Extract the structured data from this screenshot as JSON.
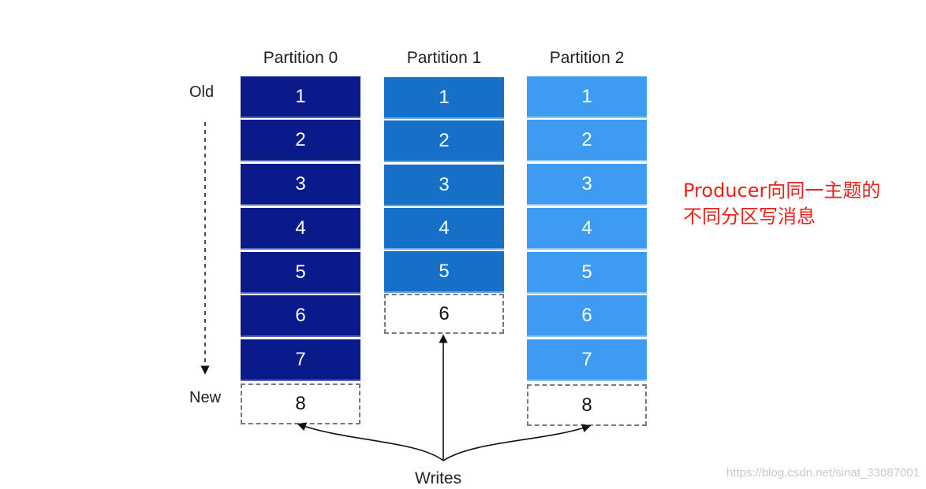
{
  "labels": {
    "old": "Old",
    "new": "New",
    "writes": "Writes"
  },
  "partitions": [
    {
      "title": "Partition 0",
      "cells": [
        "1",
        "2",
        "3",
        "4",
        "5",
        "6",
        "7"
      ],
      "pending": "8"
    },
    {
      "title": "Partition 1",
      "cells": [
        "1",
        "2",
        "3",
        "4",
        "5"
      ],
      "pending": "6"
    },
    {
      "title": "Partition 2",
      "cells": [
        "1",
        "2",
        "3",
        "4",
        "5",
        "6",
        "7"
      ],
      "pending": "8"
    }
  ],
  "note": {
    "line1": "Producer向同一主题的",
    "line2": "不同分区写消息"
  },
  "watermark": "https://blog.csdn.net/sinat_33087001",
  "colors": {
    "partition0": "#0b1a8a",
    "partition1": "#1670c8",
    "partition2": "#3d9cf0",
    "note": "#e8231a"
  }
}
